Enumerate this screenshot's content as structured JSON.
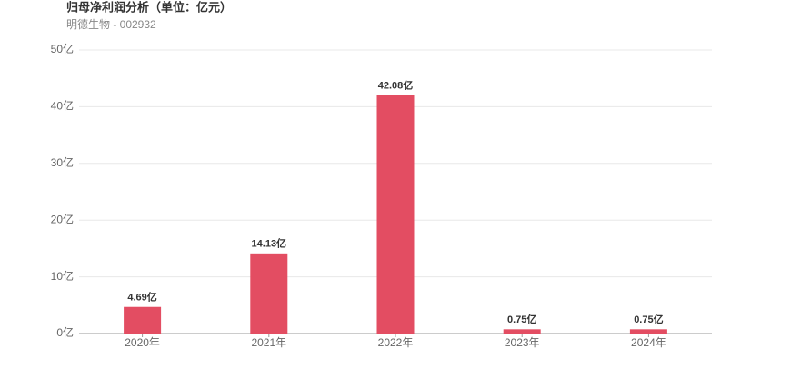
{
  "chart_data": {
    "type": "bar",
    "title": "归母净利润分析（单位：亿元）",
    "subtitle": "明德生物 - 002932",
    "categories": [
      "2020年",
      "2021年",
      "2022年",
      "2023年",
      "2024年"
    ],
    "values": [
      4.69,
      14.13,
      42.08,
      0.75,
      0.75
    ],
    "value_labels": [
      "4.69亿",
      "14.13亿",
      "42.08亿",
      "0.75亿",
      "0.75亿"
    ],
    "color": "#e34d62",
    "ylim": [
      0,
      50
    ],
    "yticks": [
      {
        "value": 0,
        "label": "0亿"
      },
      {
        "value": 10,
        "label": "10亿"
      },
      {
        "value": 20,
        "label": "20亿"
      },
      {
        "value": 30,
        "label": "30亿"
      },
      {
        "value": 40,
        "label": "40亿"
      },
      {
        "value": 50,
        "label": "50亿"
      }
    ],
    "grid": true
  }
}
